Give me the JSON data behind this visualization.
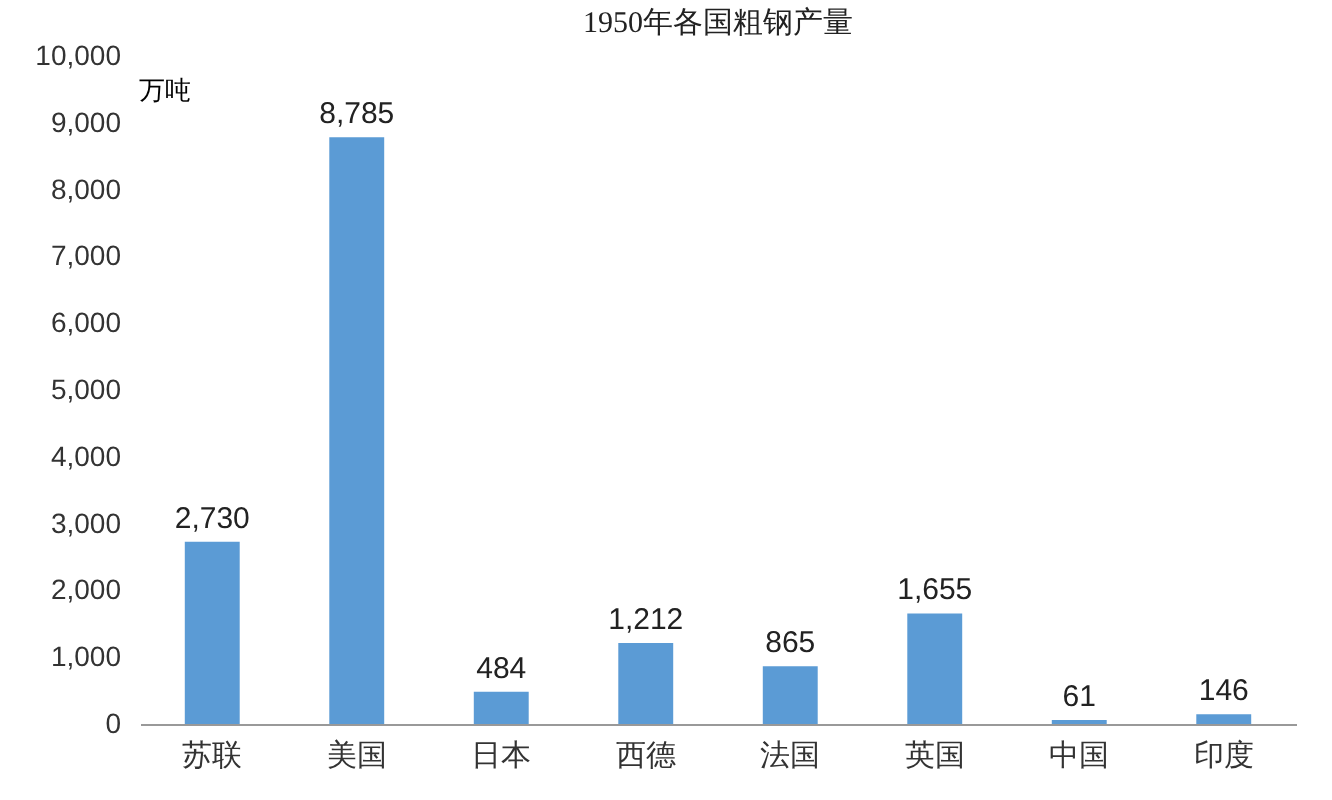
{
  "chart_data": {
    "type": "bar",
    "title": "1950年各国粗钢产量",
    "ylabel": "万吨",
    "categories": [
      "苏联",
      "美国",
      "日本",
      "西德",
      "法国",
      "英国",
      "中国",
      "印度"
    ],
    "values": [
      2730,
      8785,
      484,
      1212,
      865,
      1655,
      61,
      146
    ],
    "value_labels": [
      "2,730",
      "8,785",
      "484",
      "1,212",
      "865",
      "1,655",
      "61",
      "146"
    ],
    "color": "#5b9bd5",
    "ylim": [
      0,
      10000
    ],
    "yticks": [
      {
        "value": 0,
        "label": "0"
      },
      {
        "value": 1000,
        "label": "1,000"
      },
      {
        "value": 2000,
        "label": "2,000"
      },
      {
        "value": 3000,
        "label": "3,000"
      },
      {
        "value": 4000,
        "label": "4,000"
      },
      {
        "value": 5000,
        "label": "5,000"
      },
      {
        "value": 6000,
        "label": "6,000"
      },
      {
        "value": 7000,
        "label": "7,000"
      },
      {
        "value": 8000,
        "label": "8,000"
      },
      {
        "value": 9000,
        "label": "9,000"
      },
      {
        "value": 10000,
        "label": "10,000"
      }
    ],
    "grid": false
  }
}
